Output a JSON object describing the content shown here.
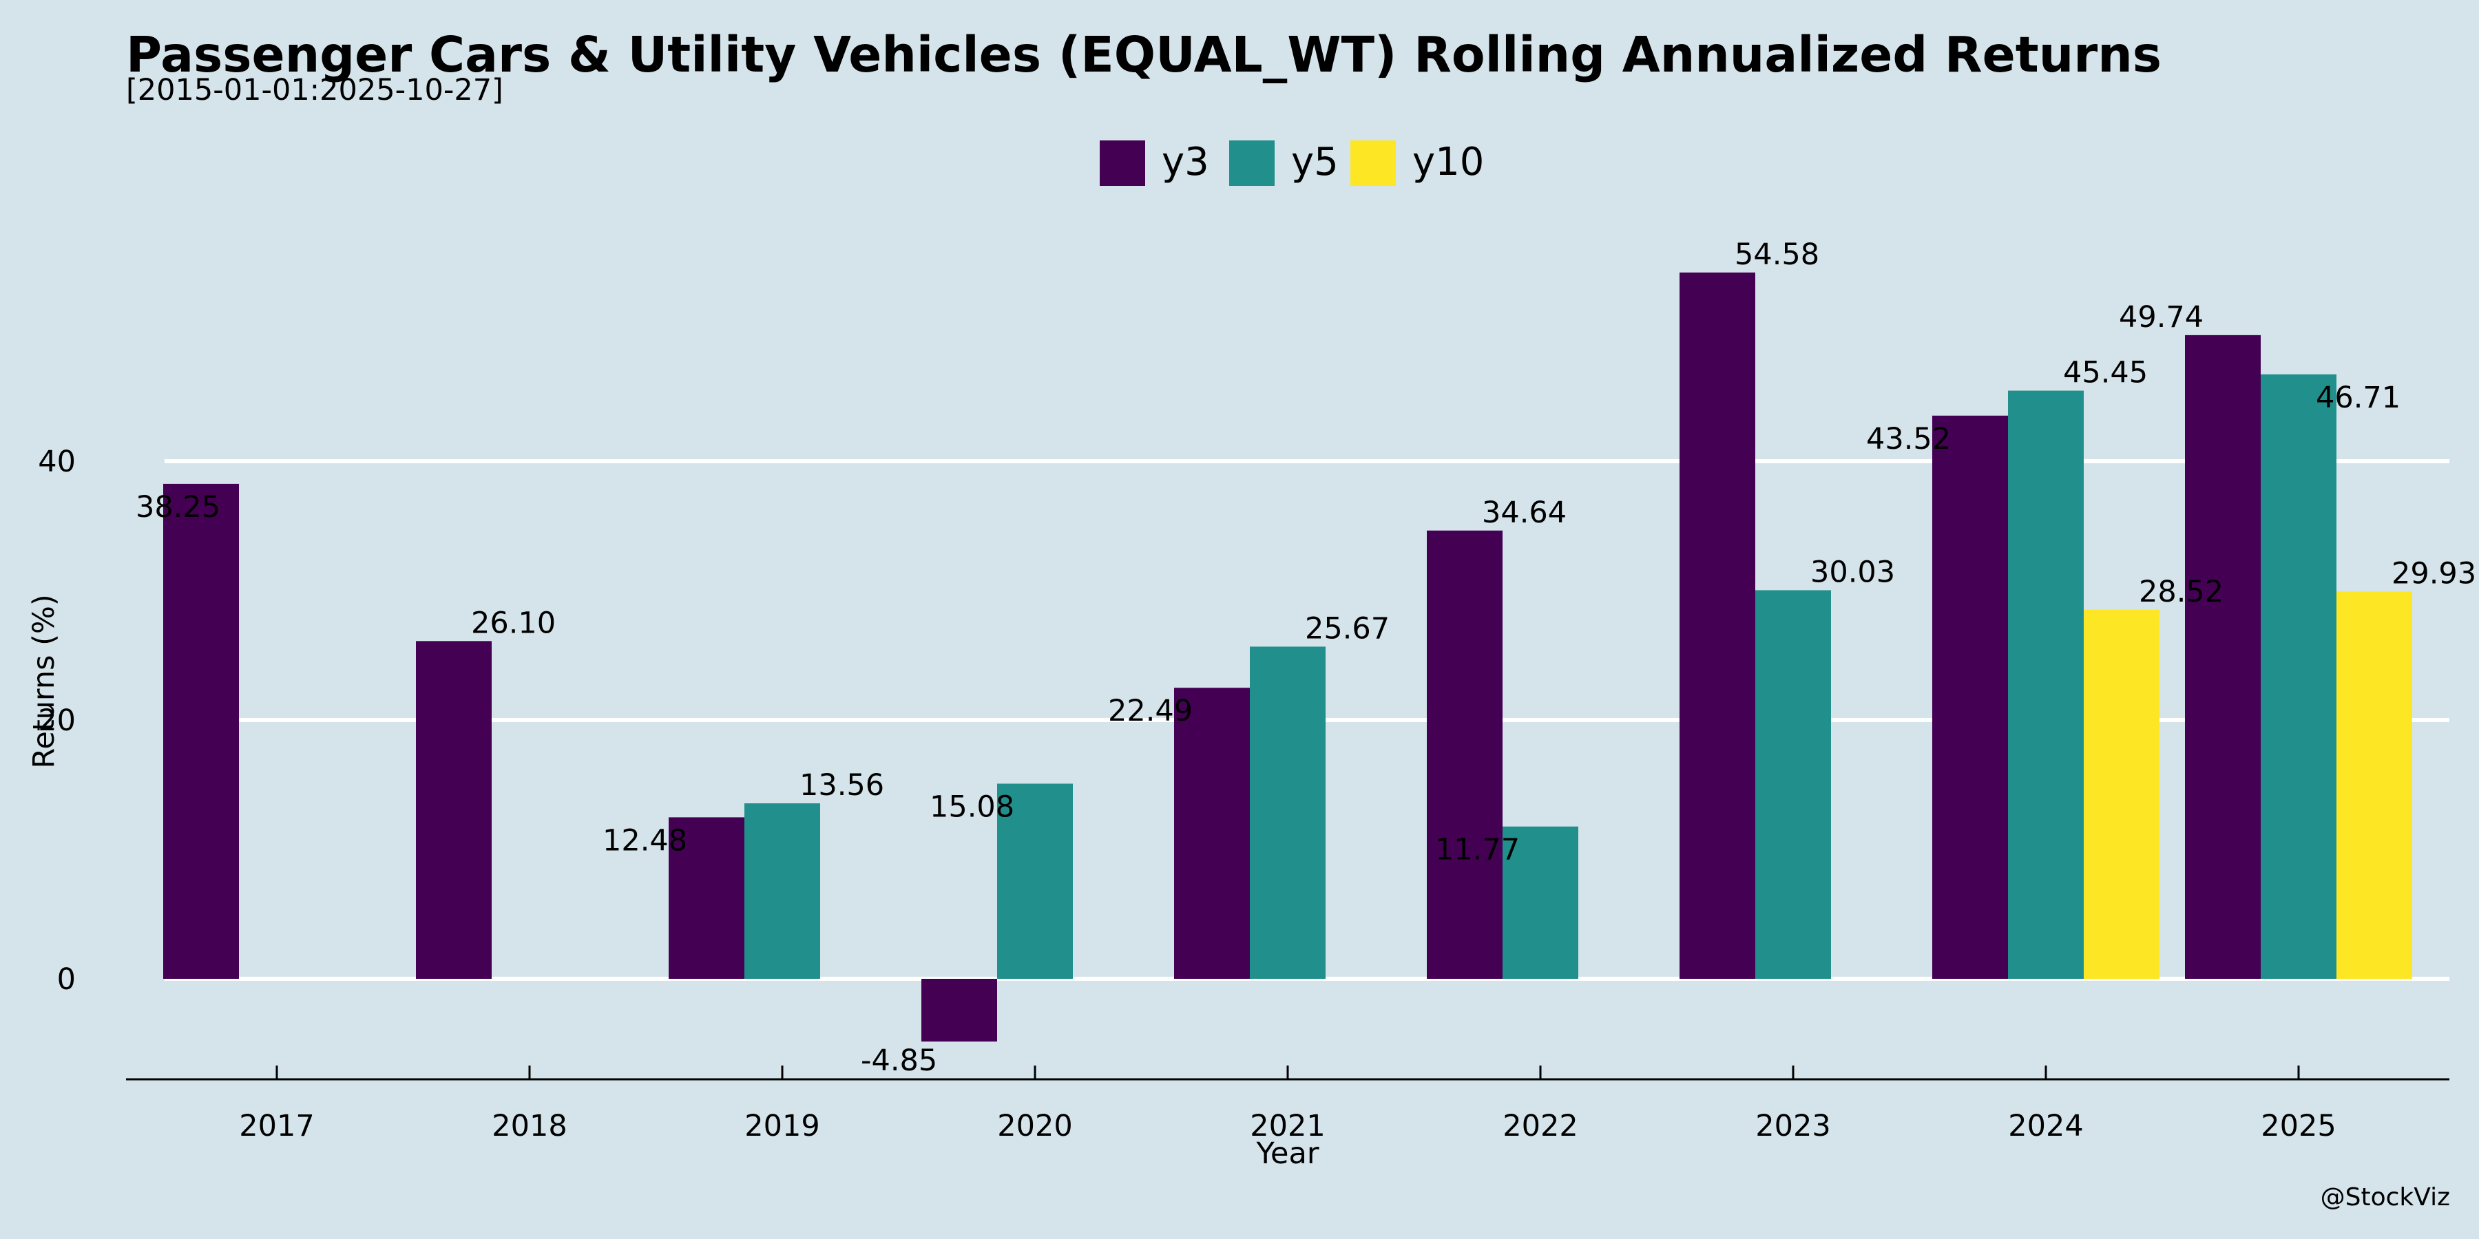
{
  "title": "Passenger Cars & Utility Vehicles (EQUAL_WT) Rolling Annualized Returns",
  "subtitle": "[2015-01-01:2025-10-27]",
  "watermark": "@StockViz",
  "colors": {
    "background": "#d5e4ea",
    "y3": "#440154",
    "y5": "#21908c",
    "y10": "#fde725",
    "grid": "#ffffff"
  },
  "chart_data": {
    "type": "bar",
    "categories": [
      "2017",
      "2018",
      "2019",
      "2020",
      "2021",
      "2022",
      "2023",
      "2024",
      "2025"
    ],
    "series": [
      {
        "name": "y3",
        "values": [
          38.25,
          26.1,
          12.48,
          -4.85,
          22.49,
          34.64,
          54.58,
          43.52,
          49.74
        ]
      },
      {
        "name": "y5",
        "values": [
          null,
          null,
          13.56,
          15.08,
          25.67,
          11.77,
          30.03,
          45.45,
          46.71
        ]
      },
      {
        "name": "y10",
        "values": [
          null,
          null,
          null,
          null,
          null,
          null,
          null,
          28.52,
          29.93
        ]
      }
    ],
    "data_labels": {
      "y3": [
        "38.25",
        "26.10",
        "12.48",
        "-4.85",
        "22.49",
        "34.64",
        "54.58",
        "43.52",
        "49.74"
      ],
      "y5": [
        null,
        null,
        "13.56",
        "15.08",
        "25.67",
        "11.77",
        "30.03",
        "45.45",
        "46.71"
      ],
      "y10": [
        null,
        null,
        null,
        null,
        null,
        null,
        null,
        "28.52",
        "29.93"
      ]
    },
    "xlabel": "Year",
    "ylabel": "Returns (%)",
    "yticks": [
      0,
      20,
      40
    ],
    "ylim": [
      -7.8,
      57.5
    ],
    "grid": "horizontal",
    "legend": "top-center"
  }
}
